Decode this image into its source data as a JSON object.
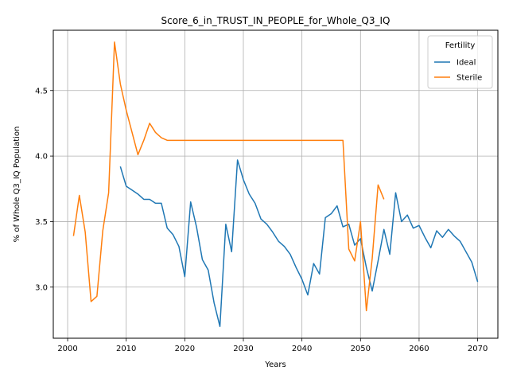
{
  "chart_data": {
    "type": "line",
    "title": "Score_6_in_TRUST_IN_PEOPLE_for_Whole_Q3_IQ",
    "xlabel": "Years",
    "ylabel": "% of Whole Q3_IQ Population",
    "xlim": [
      1997.55,
      2073.45
    ],
    "ylim": [
      2.61,
      4.96
    ],
    "xticks": [
      2000,
      2010,
      2020,
      2030,
      2040,
      2050,
      2060,
      2070
    ],
    "yticks": [
      3.0,
      3.5,
      4.0,
      4.5
    ],
    "ytick_labels": [
      "3.0",
      "3.5",
      "4.0",
      "4.5"
    ],
    "grid": true,
    "legend": {
      "title": "Fertility",
      "position": "top-right"
    },
    "series": [
      {
        "name": "Ideal",
        "color": "#1f77b4",
        "x": [
          2009,
          2010,
          2011,
          2012,
          2013,
          2014,
          2015,
          2016,
          2017,
          2018,
          2019,
          2020,
          2021,
          2022,
          2023,
          2024,
          2025,
          2026,
          2027,
          2028,
          2029,
          2030,
          2031,
          2032,
          2033,
          2034,
          2035,
          2036,
          2037,
          2038,
          2039,
          2040,
          2041,
          2042,
          2043,
          2044,
          2045,
          2046,
          2047,
          2048,
          2049,
          2050,
          2051,
          2052,
          2053,
          2054,
          2055,
          2056,
          2057,
          2058,
          2059,
          2060,
          2061,
          2062,
          2063,
          2064,
          2065,
          2066,
          2067,
          2068,
          2069,
          2070
        ],
        "values": [
          3.92,
          3.77,
          3.74,
          3.71,
          3.67,
          3.67,
          3.64,
          3.64,
          3.45,
          3.4,
          3.31,
          3.08,
          3.65,
          3.46,
          3.21,
          3.13,
          2.88,
          2.7,
          3.48,
          3.27,
          3.97,
          3.82,
          3.71,
          3.64,
          3.52,
          3.48,
          3.42,
          3.35,
          3.31,
          3.25,
          3.15,
          3.06,
          2.94,
          3.18,
          3.1,
          3.53,
          3.56,
          3.62,
          3.46,
          3.48,
          3.32,
          3.37,
          3.15,
          2.97,
          3.2,
          3.44,
          3.25,
          3.72,
          3.5,
          3.55,
          3.45,
          3.47,
          3.38,
          3.3,
          3.43,
          3.38,
          3.44,
          3.39,
          3.35,
          3.27,
          3.19,
          3.04
        ]
      },
      {
        "name": "Sterile",
        "color": "#ff7f0e",
        "x": [
          2001,
          2002,
          2003,
          2004,
          2005,
          2006,
          2007,
          2008,
          2009,
          2010,
          2011,
          2012,
          2013,
          2014,
          2015,
          2016,
          2017,
          2018,
          2019,
          2020,
          2021,
          2022,
          2023,
          2024,
          2025,
          2026,
          2027,
          2028,
          2029,
          2030,
          2031,
          2032,
          2033,
          2034,
          2035,
          2036,
          2037,
          2038,
          2039,
          2040,
          2041,
          2042,
          2043,
          2044,
          2045,
          2046,
          2047,
          2048,
          2049,
          2050,
          2051,
          2052,
          2053,
          2054
        ],
        "values": [
          3.39,
          3.7,
          3.42,
          2.89,
          2.93,
          3.43,
          3.72,
          4.87,
          4.55,
          4.35,
          4.18,
          4.01,
          4.12,
          4.25,
          4.18,
          4.14,
          4.12,
          4.12,
          4.12,
          4.12,
          4.12,
          4.12,
          4.12,
          4.12,
          4.12,
          4.12,
          4.12,
          4.12,
          4.12,
          4.12,
          4.12,
          4.12,
          4.12,
          4.12,
          4.12,
          4.12,
          4.12,
          4.12,
          4.12,
          4.12,
          4.12,
          4.12,
          4.12,
          4.12,
          4.12,
          4.12,
          4.12,
          3.29,
          3.2,
          3.5,
          2.82,
          3.22,
          3.78,
          3.67
        ]
      }
    ]
  }
}
